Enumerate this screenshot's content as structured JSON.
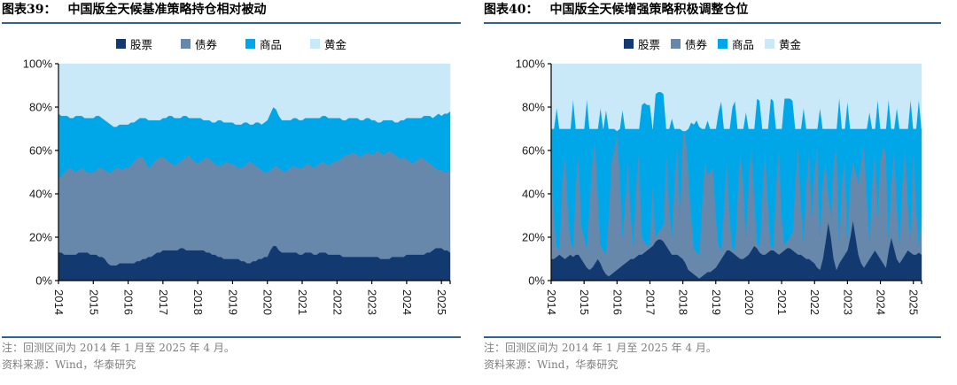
{
  "colors": {
    "rule_line": "#33628f",
    "note_text": "#7f7f7f",
    "axis_text": "#1a1a1a"
  },
  "chart_data": [
    {
      "type": "area",
      "stacked": "percent",
      "fig_label": "图表39：",
      "title": "中国版全天候基准策略持仓相对被动",
      "x_start": "2014-01",
      "x_end": "2025-04",
      "x_interval": "monthly",
      "x_ticks": [
        "2014",
        "2015",
        "2016",
        "2017",
        "2018",
        "2019",
        "2020",
        "2021",
        "2022",
        "2023",
        "2024",
        "2025"
      ],
      "y_ticks": [
        "0%",
        "20%",
        "40%",
        "60%",
        "80%",
        "100%"
      ],
      "ylim": [
        0,
        100
      ],
      "legend_position": "top",
      "note": "注：回测区间为 2014 年 1 月至 2025 年 4 月。",
      "source": "资料来源：Wind，华泰研究",
      "series": [
        {
          "key": "stocks",
          "name": "股票",
          "color": "#133a70",
          "values": [
            13,
            13,
            12,
            12,
            12,
            12,
            12,
            13,
            13,
            13,
            13,
            12,
            12,
            12,
            11,
            11,
            10,
            8,
            7,
            7,
            7,
            8,
            8,
            8,
            8,
            8,
            8,
            9,
            9,
            10,
            10,
            11,
            11,
            12,
            13,
            13,
            14,
            14,
            14,
            14,
            14,
            14,
            15,
            15,
            14,
            14,
            14,
            14,
            14,
            14,
            14,
            13,
            13,
            12,
            12,
            11,
            11,
            10,
            10,
            10,
            10,
            10,
            10,
            9,
            9,
            8,
            8,
            9,
            9,
            10,
            10,
            11,
            11,
            14,
            16,
            16,
            14,
            13,
            13,
            13,
            13,
            13,
            13,
            12,
            12,
            13,
            13,
            13,
            12,
            12,
            13,
            13,
            13,
            12,
            12,
            12,
            12,
            12,
            11,
            11,
            11,
            11,
            11,
            11,
            11,
            11,
            11,
            11,
            11,
            11,
            11,
            10,
            10,
            10,
            10,
            11,
            11,
            11,
            11,
            11,
            12,
            12,
            12,
            12,
            12,
            12,
            12,
            13,
            13,
            14,
            15,
            15,
            15,
            14,
            14,
            13
          ]
        },
        {
          "key": "bonds",
          "name": "债券",
          "color": "#6787ab",
          "values": [
            34,
            35,
            38,
            39,
            40,
            39,
            38,
            38,
            39,
            38,
            37,
            38,
            38,
            39,
            41,
            41,
            41,
            42,
            43,
            44,
            45,
            44,
            43,
            44,
            44,
            45,
            47,
            47,
            48,
            47,
            45,
            41,
            42,
            43,
            43,
            44,
            43,
            42,
            41,
            40,
            39,
            40,
            40,
            41,
            43,
            44,
            42,
            41,
            40,
            41,
            42,
            44,
            43,
            43,
            42,
            42,
            42,
            44,
            45,
            44,
            44,
            43,
            42,
            43,
            44,
            46,
            47,
            45,
            44,
            42,
            41,
            39,
            39,
            37,
            36,
            37,
            38,
            38,
            37,
            38,
            39,
            40,
            39,
            40,
            40,
            40,
            41,
            40,
            40,
            41,
            41,
            42,
            41,
            41,
            42,
            43,
            43,
            44,
            46,
            47,
            47,
            48,
            48,
            47,
            46,
            47,
            48,
            48,
            47,
            48,
            49,
            49,
            48,
            49,
            50,
            48,
            47,
            46,
            45,
            46,
            44,
            43,
            42,
            43,
            44,
            45,
            44,
            42,
            41,
            39,
            37,
            36,
            36,
            36,
            36,
            38
          ]
        },
        {
          "key": "commodities",
          "name": "商品",
          "color": "#00a7e8",
          "values": [
            30,
            28,
            26,
            25,
            23,
            24,
            26,
            25,
            24,
            24,
            25,
            25,
            25,
            25,
            24,
            23,
            23,
            23,
            22,
            20,
            19,
            20,
            21,
            20,
            20,
            20,
            18,
            18,
            18,
            18,
            20,
            22,
            21,
            19,
            18,
            17,
            18,
            19,
            21,
            22,
            22,
            21,
            20,
            20,
            19,
            17,
            19,
            20,
            21,
            20,
            18,
            17,
            18,
            18,
            19,
            21,
            21,
            19,
            18,
            19,
            19,
            19,
            20,
            20,
            20,
            19,
            17,
            18,
            20,
            21,
            21,
            23,
            24,
            26,
            28,
            26,
            24,
            23,
            24,
            23,
            22,
            22,
            23,
            22,
            22,
            22,
            21,
            22,
            23,
            22,
            21,
            21,
            22,
            22,
            21,
            20,
            20,
            19,
            17,
            16,
            17,
            16,
            16,
            17,
            17,
            16,
            16,
            16,
            16,
            15,
            13,
            14,
            16,
            15,
            14,
            15,
            15,
            16,
            18,
            17,
            19,
            20,
            21,
            20,
            19,
            18,
            20,
            21,
            22,
            22,
            24,
            26,
            25,
            27,
            27,
            27
          ]
        },
        {
          "key": "gold",
          "name": "黄金",
          "color": "#c9e9f8",
          "values": [
            23,
            24,
            24,
            24,
            25,
            25,
            24,
            24,
            24,
            25,
            25,
            25,
            25,
            24,
            24,
            25,
            26,
            27,
            28,
            29,
            29,
            28,
            28,
            28,
            28,
            27,
            27,
            26,
            25,
            25,
            25,
            26,
            26,
            26,
            26,
            26,
            25,
            25,
            24,
            24,
            25,
            25,
            25,
            24,
            24,
            25,
            25,
            25,
            25,
            25,
            26,
            26,
            26,
            27,
            27,
            26,
            26,
            27,
            27,
            27,
            27,
            28,
            28,
            28,
            27,
            27,
            28,
            28,
            27,
            27,
            28,
            27,
            26,
            23,
            20,
            21,
            24,
            26,
            26,
            26,
            26,
            25,
            25,
            26,
            26,
            25,
            25,
            25,
            25,
            25,
            25,
            24,
            24,
            25,
            25,
            25,
            25,
            25,
            26,
            26,
            25,
            25,
            25,
            25,
            26,
            26,
            25,
            25,
            26,
            26,
            27,
            27,
            26,
            26,
            26,
            26,
            27,
            27,
            26,
            26,
            25,
            25,
            25,
            25,
            25,
            25,
            24,
            24,
            24,
            25,
            24,
            23,
            24,
            23,
            23,
            22
          ]
        }
      ]
    },
    {
      "type": "area",
      "stacked": "percent",
      "fig_label": "图表40：",
      "title": "中国版全天候增强策略积极调整仓位",
      "x_start": "2014-01",
      "x_end": "2025-04",
      "x_interval": "monthly",
      "x_ticks": [
        "2014",
        "2015",
        "2016",
        "2017",
        "2018",
        "2019",
        "2020",
        "2021",
        "2022",
        "2023",
        "2024",
        "2025"
      ],
      "y_ticks": [
        "0%",
        "20%",
        "40%",
        "60%",
        "80%",
        "100%"
      ],
      "ylim": [
        0,
        100
      ],
      "legend_position": "top",
      "note": "注：回测区间为 2014 年 1 月至 2025 年 4 月。",
      "source": "资料来源：Wind，华泰研究",
      "series": [
        {
          "key": "stocks",
          "name": "股票",
          "color": "#133a70",
          "values": [
            10,
            10,
            11,
            12,
            11,
            10,
            11,
            12,
            11,
            12,
            12,
            10,
            8,
            6,
            5,
            6,
            8,
            10,
            8,
            5,
            3,
            2,
            3,
            4,
            5,
            6,
            7,
            8,
            9,
            10,
            10,
            11,
            12,
            12,
            13,
            14,
            15,
            16,
            18,
            19,
            19,
            18,
            16,
            14,
            12,
            12,
            12,
            11,
            10,
            8,
            5,
            4,
            3,
            2,
            1,
            2,
            3,
            4,
            4,
            5,
            6,
            8,
            10,
            12,
            14,
            14,
            13,
            12,
            11,
            10,
            10,
            11,
            12,
            14,
            16,
            15,
            13,
            12,
            12,
            13,
            14,
            14,
            13,
            12,
            13,
            14,
            15,
            15,
            14,
            13,
            12,
            12,
            11,
            10,
            10,
            9,
            8,
            6,
            5,
            10,
            18,
            27,
            20,
            10,
            5,
            8,
            10,
            12,
            14,
            20,
            28,
            20,
            12,
            8,
            6,
            8,
            10,
            12,
            14,
            12,
            10,
            8,
            6,
            14,
            20,
            15,
            10,
            8,
            10,
            12,
            14,
            13,
            12,
            12,
            13,
            12
          ]
        },
        {
          "key": "bonds",
          "name": "债券",
          "color": "#6787ab",
          "values": [
            52,
            20,
            5,
            2,
            34,
            50,
            24,
            6,
            4,
            33,
            46,
            15,
            12,
            9,
            30,
            49,
            57,
            30,
            8,
            9,
            9,
            28,
            52,
            56,
            63,
            44,
            13,
            27,
            46,
            20,
            6,
            34,
            48,
            8,
            5,
            2,
            2,
            29,
            2,
            3,
            5,
            8,
            44,
            21,
            8,
            33,
            50,
            19,
            58,
            60,
            45,
            26,
            12,
            11,
            11,
            33,
            52,
            45,
            46,
            47,
            24,
            8,
            4,
            23,
            41,
            16,
            2,
            2,
            29,
            50,
            35,
            9,
            33,
            48,
            24,
            3,
            2,
            28,
            48,
            22,
            2,
            1,
            32,
            48,
            17,
            2,
            3,
            5,
            8,
            32,
            50,
            23,
            7,
            35,
            50,
            21,
            42,
            56,
            15,
            35,
            37,
            13,
            10,
            45,
            57,
            10,
            35,
            43,
            6,
            25,
            27,
            30,
            33,
            47,
            56,
            32,
            8,
            33,
            46,
            18,
            45,
            54,
            52,
            6,
            25,
            45,
            25,
            8,
            35,
            50,
            21,
            5,
            48,
            23,
            3,
            18
          ]
        },
        {
          "key": "commodities",
          "name": "商品",
          "color": "#00a7e8",
          "values": [
            8,
            40,
            64,
            56,
            25,
            10,
            35,
            52,
            69,
            25,
            12,
            45,
            50,
            69,
            35,
            15,
            5,
            30,
            64,
            56,
            67,
            40,
            15,
            10,
            1,
            20,
            59,
            35,
            15,
            40,
            54,
            25,
            10,
            61,
            64,
            65,
            64,
            25,
            66,
            65,
            63,
            60,
            10,
            35,
            55,
            25,
            8,
            40,
            1,
            1,
            20,
            43,
            57,
            61,
            59,
            35,
            15,
            25,
            20,
            18,
            40,
            62,
            69,
            35,
            15,
            40,
            65,
            69,
            30,
            10,
            25,
            58,
            25,
            8,
            30,
            66,
            68,
            30,
            10,
            35,
            68,
            68,
            25,
            10,
            40,
            68,
            66,
            64,
            61,
            25,
            8,
            35,
            62,
            25,
            10,
            40,
            20,
            8,
            60,
            25,
            15,
            30,
            40,
            15,
            8,
            67,
            25,
            15,
            63,
            25,
            15,
            20,
            25,
            15,
            8,
            30,
            60,
            25,
            10,
            54,
            15,
            8,
            12,
            64,
            25,
            10,
            45,
            54,
            25,
            8,
            35,
            66,
            10,
            35,
            68,
            40
          ]
        },
        {
          "key": "gold",
          "name": "黄金",
          "color": "#c9e9f8",
          "values": [
            30,
            30,
            20,
            30,
            30,
            30,
            30,
            30,
            16,
            30,
            30,
            30,
            30,
            16,
            30,
            30,
            30,
            30,
            20,
            30,
            21,
            30,
            30,
            30,
            31,
            30,
            21,
            30,
            30,
            30,
            30,
            30,
            30,
            19,
            18,
            19,
            19,
            30,
            14,
            13,
            13,
            14,
            30,
            30,
            25,
            30,
            30,
            30,
            31,
            31,
            30,
            27,
            28,
            26,
            29,
            30,
            30,
            26,
            30,
            30,
            30,
            22,
            17,
            30,
            30,
            30,
            20,
            17,
            30,
            30,
            30,
            22,
            30,
            30,
            30,
            16,
            17,
            30,
            30,
            30,
            16,
            17,
            30,
            30,
            30,
            16,
            16,
            16,
            17,
            30,
            30,
            30,
            20,
            30,
            30,
            30,
            30,
            30,
            20,
            30,
            30,
            30,
            30,
            30,
            30,
            15,
            30,
            30,
            17,
            30,
            30,
            30,
            30,
            30,
            30,
            30,
            22,
            30,
            30,
            16,
            30,
            30,
            30,
            16,
            30,
            30,
            20,
            30,
            30,
            30,
            30,
            16,
            30,
            30,
            16,
            30
          ]
        }
      ]
    }
  ]
}
